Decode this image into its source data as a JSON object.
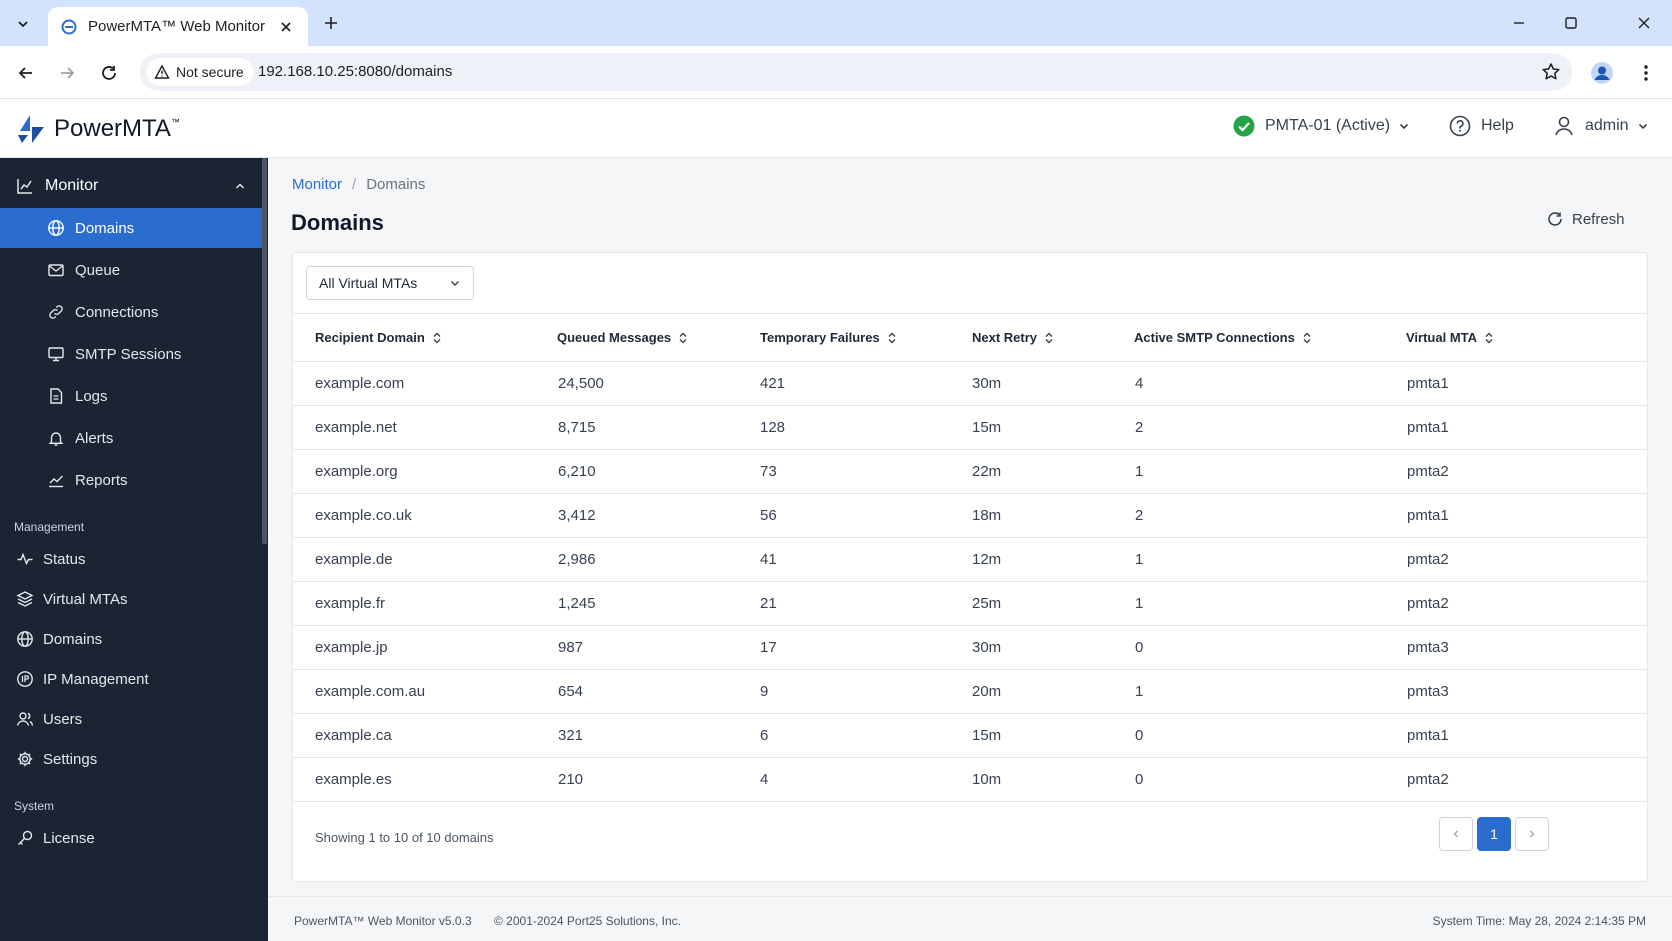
{
  "browser": {
    "tab_title": "PowerMTA™ Web Monitor",
    "secure_label": "Not secure",
    "url": "192.168.10.25:8080/domains"
  },
  "header": {
    "logo_text": "PowerMTA",
    "logo_tm": "™",
    "server": "PMTA-01 (Active)",
    "help": "Help",
    "user": "admin"
  },
  "sidebar": {
    "monitor_label": "Monitor",
    "monitor_items": [
      {
        "label": "Domains",
        "icon": "globe-icon"
      },
      {
        "label": "Queue",
        "icon": "envelope-icon"
      },
      {
        "label": "Connections",
        "icon": "link-icon"
      },
      {
        "label": "SMTP Sessions",
        "icon": "monitor-icon"
      },
      {
        "label": "Logs",
        "icon": "document-icon"
      },
      {
        "label": "Alerts",
        "icon": "bell-icon"
      },
      {
        "label": "Reports",
        "icon": "trend-icon"
      }
    ],
    "management_label": "Management",
    "management_items": [
      {
        "label": "Status",
        "icon": "pulse-icon"
      },
      {
        "label": "Virtual MTAs",
        "icon": "layers-icon"
      },
      {
        "label": "Domains",
        "icon": "globe-icon"
      },
      {
        "label": "IP Management",
        "icon": "ip-icon"
      },
      {
        "label": "Users",
        "icon": "users-icon"
      },
      {
        "label": "Settings",
        "icon": "gear-icon"
      }
    ],
    "system_label": "System",
    "system_items": [
      {
        "label": "License",
        "icon": "key-icon"
      }
    ]
  },
  "main": {
    "breadcrumb": {
      "parent": "Monitor",
      "sep": "/",
      "current": "Domains"
    },
    "title": "Domains",
    "refresh": "Refresh",
    "filter": "All Virtual MTAs",
    "columns": [
      "Recipient Domain",
      "Queued Messages",
      "Temporary Failures",
      "Next Retry",
      "Active SMTP Connections",
      "Virtual MTA"
    ],
    "rows": [
      [
        "example.com",
        "24,500",
        "421",
        "30m",
        "4",
        "pmta1"
      ],
      [
        "example.net",
        "8,715",
        "128",
        "15m",
        "2",
        "pmta1"
      ],
      [
        "example.org",
        "6,210",
        "73",
        "22m",
        "1",
        "pmta2"
      ],
      [
        "example.co.uk",
        "3,412",
        "56",
        "18m",
        "2",
        "pmta1"
      ],
      [
        "example.de",
        "2,986",
        "41",
        "12m",
        "1",
        "pmta2"
      ],
      [
        "example.fr",
        "1,245",
        "21",
        "25m",
        "1",
        "pmta2"
      ],
      [
        "example.jp",
        "987",
        "17",
        "30m",
        "0",
        "pmta3"
      ],
      [
        "example.com.au",
        "654",
        "9",
        "20m",
        "1",
        "pmta3"
      ],
      [
        "example.ca",
        "321",
        "6",
        "15m",
        "0",
        "pmta1"
      ],
      [
        "example.es",
        "210",
        "4",
        "10m",
        "0",
        "pmta2"
      ]
    ],
    "showing": "Showing 1 to 10 of 10 domains",
    "current_page": "1"
  },
  "footer": {
    "version": "PowerMTA™ Web Monitor v5.0.3",
    "copyright": "© 2001-2024 Port25 Solutions, Inc.",
    "system_time": "System Time:  May 28, 2024 2:14:35 PM"
  },
  "colors": {
    "accent": "#2b6ccf",
    "sidebar": "#1b2433",
    "status_ok": "#22a447"
  }
}
